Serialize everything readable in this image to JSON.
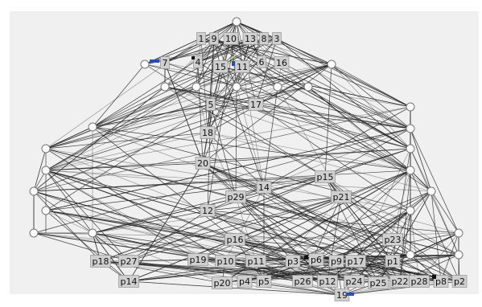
{
  "diagram": {
    "background": "#f0f0f0",
    "labels_top": [
      "1",
      "9",
      "10",
      "13",
      "8",
      "3",
      "7",
      "4",
      "15",
      "11",
      "6",
      "16",
      "5",
      "17",
      "18",
      "20"
    ],
    "labels_mid": [
      "14",
      "12",
      "p29",
      "p15",
      "p21",
      "p23",
      "p16"
    ],
    "labels_bottom_row1": [
      "p18",
      "p27",
      "p19",
      "p10",
      "p11",
      "p3",
      "p6",
      "p9",
      "p17",
      "p1"
    ],
    "labels_bottom_row2": [
      "p14",
      "p20",
      "p4",
      "p5",
      "p26",
      "p12",
      "p24",
      "p25",
      "p22",
      "p28",
      "p8",
      "p2"
    ],
    "labels_sink": [
      "19"
    ],
    "colors": {
      "edge": "#222222",
      "label_fill": "#cfcfcf",
      "marker_blue": "#2a4db3"
    }
  }
}
